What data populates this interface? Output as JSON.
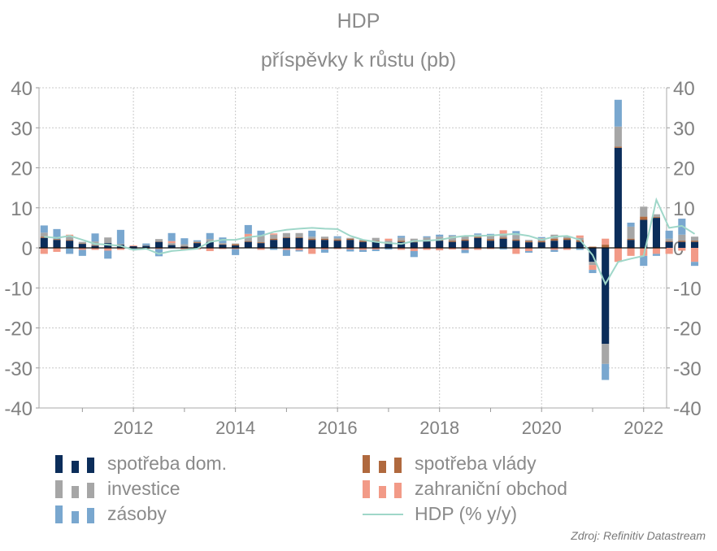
{
  "title": "HDP",
  "subtitle": "příspěvky k růstu  (pb)",
  "source": "Zdroj: Refinitiv Datastream",
  "colors": {
    "spotreba_dom": "#0b2d5a",
    "spotreba_vlady": "#b0693e",
    "investice": "#a6a6a6",
    "zahranicni": "#f29a87",
    "zasoby": "#79a7cf",
    "hdp_line": "#9fd7c9",
    "grid": "#c8c8c8",
    "axis_text": "#808080"
  },
  "legend": [
    {
      "key": "spotreba_dom",
      "label": "spotřeba dom.",
      "kind": "bar"
    },
    {
      "key": "spotreba_vlady",
      "label": "spotřeba vlády",
      "kind": "bar"
    },
    {
      "key": "investice",
      "label": "investice",
      "kind": "bar"
    },
    {
      "key": "zahranicni",
      "label": "zahraniční obchod",
      "kind": "bar"
    },
    {
      "key": "zasoby",
      "label": "zásoby",
      "kind": "bar"
    },
    {
      "key": "hdp_line",
      "label": "HDP (% y/y)",
      "kind": "line"
    }
  ],
  "chart_data": {
    "type": "bar",
    "stacked": true,
    "x_start": 2010.25,
    "x_step": 0.25,
    "xlim": [
      2010.15,
      2022.45
    ],
    "ylim": [
      -40,
      40
    ],
    "yticks": [
      "40",
      "30",
      "20",
      "10",
      "0",
      "-10",
      "-20",
      "-30",
      "-40"
    ],
    "xticks": [
      "2012",
      "2014",
      "2016",
      "2018",
      "2020",
      "2022"
    ],
    "series": [
      {
        "name": "spotřeba dom.",
        "key": "spotreba_dom",
        "values": [
          2.5,
          2,
          1.8,
          1,
          0.5,
          1.2,
          0.8,
          0.4,
          0.5,
          1.5,
          0.7,
          0.3,
          1.2,
          1.5,
          0.8,
          0.6,
          1.5,
          1.2,
          2,
          2.5,
          2.5,
          2,
          2,
          1.8,
          2,
          1.5,
          1.5,
          1,
          1.5,
          1.4,
          1.6,
          1.8,
          1.5,
          1.8,
          2.5,
          1.8,
          2.3,
          1.8,
          1.4,
          1.4,
          1.8,
          2,
          1.5,
          -3.5,
          -24,
          25,
          2,
          7,
          7.5,
          1.5,
          1.5,
          1.5
        ]
      },
      {
        "name": "spotřeba vlády",
        "key": "spotreba_vlady",
        "values": [
          0.3,
          0.2,
          0.2,
          0.1,
          0.1,
          0,
          0,
          0,
          0,
          0.1,
          0,
          0.1,
          0.2,
          0,
          0.1,
          0.3,
          0.2,
          0.2,
          0.3,
          0.2,
          0.2,
          0.3,
          0.3,
          0.3,
          0.3,
          0.3,
          0.3,
          0.3,
          0.3,
          0.3,
          0.3,
          0.3,
          0.3,
          0.3,
          0.3,
          0.4,
          0.3,
          0.3,
          0.3,
          0.3,
          0.5,
          0.4,
          0.4,
          0.3,
          0.8,
          0.3,
          0.3,
          0.8,
          0.2,
          0.2,
          0.3,
          0.3
        ]
      },
      {
        "name": "investice",
        "key": "investice",
        "values": [
          1,
          0,
          0.8,
          0.4,
          1,
          1.4,
          0.2,
          0,
          0.2,
          0.6,
          0.5,
          0.5,
          0.2,
          0.7,
          0.3,
          0.2,
          1,
          1.6,
          1,
          1,
          1,
          0.5,
          0.5,
          0.4,
          0.2,
          0.2,
          0.7,
          0.5,
          0.7,
          0.6,
          0.7,
          0.7,
          1.2,
          0.9,
          0.5,
          1,
          1,
          1.1,
          0.3,
          0.5,
          1,
          0.4,
          0.6,
          -0.8,
          -5,
          5,
          3,
          2.5,
          0.7,
          0.6,
          1.5,
          1
        ]
      },
      {
        "name": "zahraniční obchod",
        "key": "zahranicni",
        "values": [
          -1.5,
          -1,
          0.5,
          -0.5,
          -0.5,
          -0.7,
          -0.5,
          0.2,
          -0.2,
          -0.3,
          0.5,
          -0.4,
          -0.4,
          -0.8,
          -0.3,
          -0.3,
          0.8,
          -0.5,
          0.3,
          -0.5,
          -0.6,
          -1.5,
          -0.4,
          -0.3,
          -0.4,
          -0.5,
          -0.4,
          0.5,
          -0.5,
          -0.8,
          -0.5,
          -0.6,
          -0.4,
          -0.5,
          -0.5,
          -0.3,
          0.8,
          -1.5,
          -0.8,
          0.2,
          -0.5,
          -0.5,
          0.6,
          -1.2,
          1.5,
          -3.5,
          -2,
          -2,
          -1.5,
          -1.5,
          -0.7,
          -3.5
        ]
      },
      {
        "name": "zásoby",
        "key": "zasoby",
        "values": [
          1.8,
          2.5,
          -1.5,
          -1.5,
          2,
          -2,
          3.5,
          -0.5,
          0.4,
          -1.8,
          2,
          1.5,
          0.3,
          1.5,
          1.4,
          -1.5,
          2.2,
          1.3,
          -0.5,
          -1.5,
          -0.3,
          1.5,
          -0.8,
          0.4,
          -0.5,
          -0.5,
          -0.4,
          -0.4,
          0.5,
          -1.5,
          0.3,
          0.5,
          0.2,
          -0.8,
          0.3,
          0.3,
          -0.4,
          1,
          -0.4,
          0.3,
          -0.5,
          0,
          -0.5,
          -0.8,
          -4,
          6.7,
          1,
          -2.5,
          -0.5,
          2,
          4,
          -1
        ]
      },
      {
        "name": "HDP (% y/y)",
        "key": "hdp_line",
        "kind": "line",
        "values": [
          2.8,
          2.5,
          3,
          2,
          1,
          0.8,
          0.5,
          -0.5,
          -0.2,
          -1.5,
          -0.8,
          -0.5,
          -0.2,
          1.5,
          2,
          2,
          2.7,
          3,
          4,
          4.5,
          4.8,
          5,
          4.8,
          4.7,
          3,
          2,
          1.5,
          1.2,
          1,
          1.7,
          1.8,
          2,
          2.6,
          3,
          3,
          3.1,
          3.3,
          3.5,
          3,
          2,
          2.8,
          3,
          2,
          -1.8,
          -9,
          -3.5,
          -2.7,
          -2,
          12,
          5,
          5.5,
          3.5
        ]
      }
    ]
  }
}
